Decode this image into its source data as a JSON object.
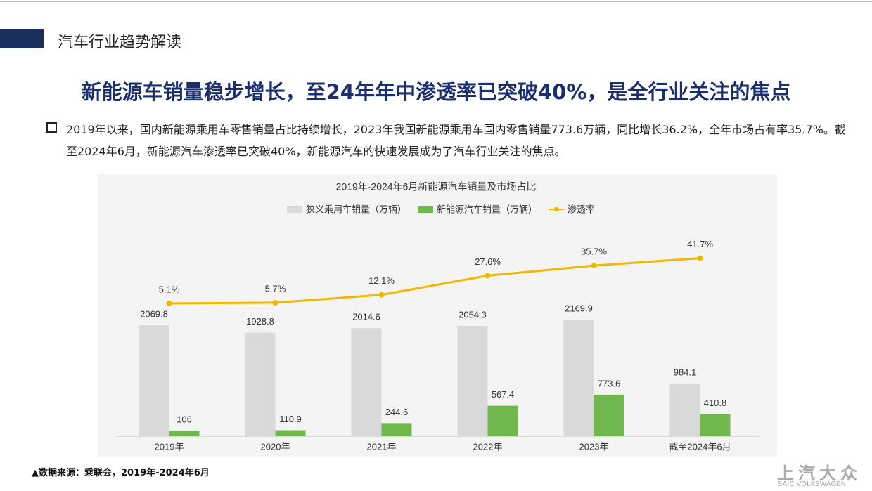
{
  "header": {
    "section": "汽车行业趋势解读"
  },
  "title": "新能源车销量稳步增长，至24年年中渗透率已突破40%，是全行业关注的焦点",
  "bullet": "2019年以来，国内新能源乘用车零售销量占比持续增长，2023年我国新能源乘用车国内零售销量773.6万辆，同比增长36.2%，全年市场占有率35.7%。截至2024年6月，新能源汽车渗透率已突破40%，新能源汽车的快速发展成为了汽车行业关注的焦点。",
  "chart_data": {
    "type": "bar-line",
    "title": "2019年-2024年6月新能源汽车销量及市场占比",
    "categories": [
      "2019年",
      "2020年",
      "2021年",
      "2022年",
      "2023年",
      "截至2024年6月"
    ],
    "series": [
      {
        "name": "狭义乘用车销量（万辆）",
        "type": "bar",
        "color": "#d9d9d9",
        "values": [
          2069.8,
          1928.8,
          2014.6,
          2054.3,
          2169.9,
          984.1
        ]
      },
      {
        "name": "新能源汽车销量（万辆）",
        "type": "bar",
        "color": "#70b84e",
        "values": [
          106,
          110.9,
          244.6,
          567.4,
          773.6,
          410.8
        ]
      },
      {
        "name": "渗透率",
        "type": "line",
        "axis": "y2",
        "color": "#f2b800",
        "values": [
          5.1,
          5.7,
          12.1,
          27.6,
          35.7,
          41.7
        ],
        "value_labels": [
          "5.1%",
          "5.7%",
          "12.1%",
          "27.6%",
          "35.7%",
          "41.7%"
        ]
      }
    ],
    "ylim": [
      0,
      2500
    ],
    "y2lim": [
      0,
      50
    ],
    "grid": false
  },
  "source": "▲数据来源：乘联会，2019年-2024年6月",
  "logo": {
    "name": "上汽大众",
    "sub": "SAIC VOLKSWAGEN"
  }
}
